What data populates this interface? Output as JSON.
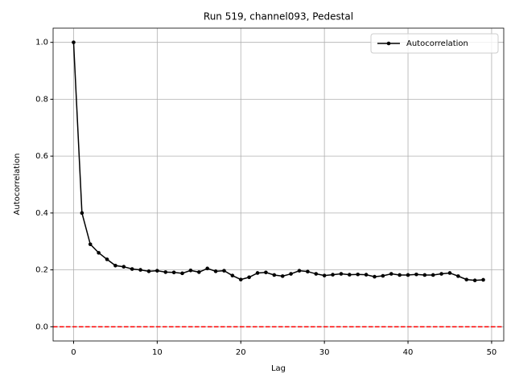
{
  "chart_data": {
    "type": "line",
    "title": "Run 519, channel093, Pedestal",
    "x_label": "Lag",
    "y_label": "Autocorrelation",
    "x": [
      0,
      1,
      2,
      3,
      4,
      5,
      6,
      7,
      8,
      9,
      10,
      11,
      12,
      13,
      14,
      15,
      16,
      17,
      18,
      19,
      20,
      21,
      22,
      23,
      24,
      25,
      26,
      27,
      28,
      29,
      30,
      31,
      32,
      33,
      34,
      35,
      36,
      37,
      38,
      39,
      40,
      41,
      42,
      43,
      44,
      45,
      46,
      47,
      48,
      49
    ],
    "series": [
      {
        "name": "Autocorrelation",
        "color": "#000000",
        "values": [
          1.0,
          0.4,
          0.29,
          0.26,
          0.237,
          0.215,
          0.211,
          0.203,
          0.2,
          0.195,
          0.197,
          0.192,
          0.191,
          0.188,
          0.198,
          0.192,
          0.205,
          0.195,
          0.197,
          0.18,
          0.166,
          0.174,
          0.189,
          0.191,
          0.182,
          0.178,
          0.186,
          0.197,
          0.194,
          0.186,
          0.18,
          0.183,
          0.186,
          0.183,
          0.184,
          0.183,
          0.176,
          0.179,
          0.186,
          0.182,
          0.182,
          0.184,
          0.182,
          0.182,
          0.186,
          0.189,
          0.178,
          0.166,
          0.163,
          0.165
        ]
      }
    ],
    "reference_line": {
      "value": 0,
      "color": "#ff0000"
    },
    "xlim": [
      -2.45,
      51.45
    ],
    "ylim": [
      -0.05,
      1.05
    ],
    "xticks": [
      0,
      10,
      20,
      30,
      40,
      50
    ],
    "yticks": [
      {
        "value": 0,
        "label": "0.0"
      },
      {
        "value": 0.2,
        "label": "0.2"
      },
      {
        "value": 0.4,
        "label": "0.4"
      },
      {
        "value": 0.6,
        "label": "0.6"
      },
      {
        "value": 0.8,
        "label": "0.8"
      },
      {
        "value": 1.0,
        "label": "1.0"
      }
    ],
    "grid": true,
    "legend": "upper right"
  }
}
